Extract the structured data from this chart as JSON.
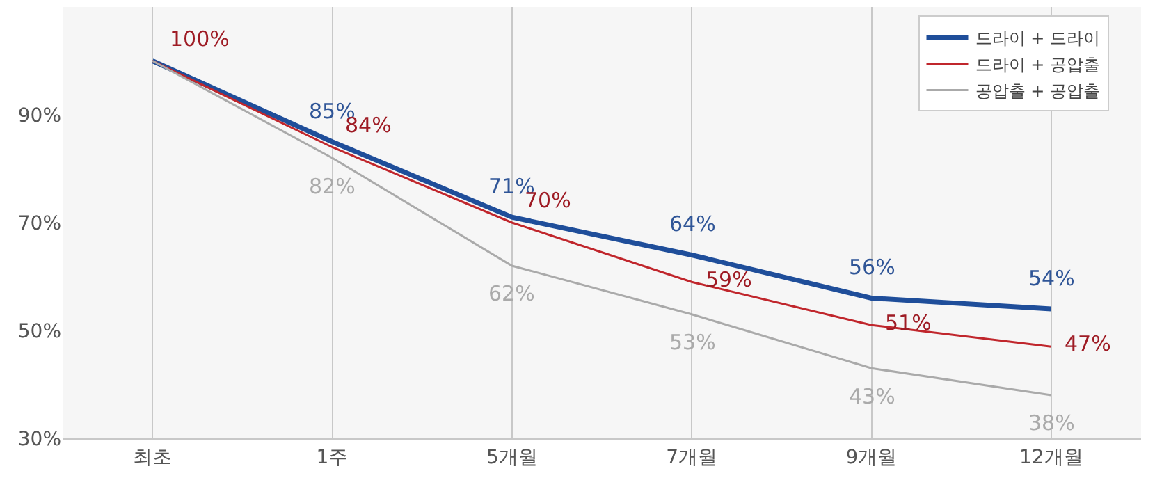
{
  "chart_data": {
    "type": "line",
    "categories": [
      "최초",
      "1주",
      "5개월",
      "7개월",
      "9개월",
      "12개월"
    ],
    "series": [
      {
        "name": "드라이 + 드라이",
        "color": "#1f4e9a",
        "values": [
          100,
          85,
          71,
          64,
          56,
          54
        ],
        "value_labels": [
          null,
          "85%",
          "71%",
          "64%",
          "56%",
          "54%"
        ]
      },
      {
        "name": "드라이 + 공압출",
        "color": "#c0262c",
        "values": [
          100,
          84,
          70,
          59,
          51,
          47
        ],
        "value_labels": [
          "100%",
          "84%",
          "70%",
          "59%",
          "51%",
          "47%"
        ]
      },
      {
        "name": "공압출 + 공압출",
        "color": "#aaaaaa",
        "values": [
          100,
          82,
          62,
          53,
          43,
          38
        ],
        "value_labels": [
          null,
          "82%",
          "62%",
          "53%",
          "43%",
          "38%"
        ]
      }
    ],
    "ylim": [
      30,
      110
    ],
    "yticks": [
      {
        "value": 30,
        "label": "30%"
      },
      {
        "value": 50,
        "label": "50%"
      },
      {
        "value": 70,
        "label": "70%"
      },
      {
        "value": 90,
        "label": "90%"
      }
    ],
    "grid": "x",
    "legend": "top right",
    "marker": "none",
    "line_style": "solid"
  }
}
